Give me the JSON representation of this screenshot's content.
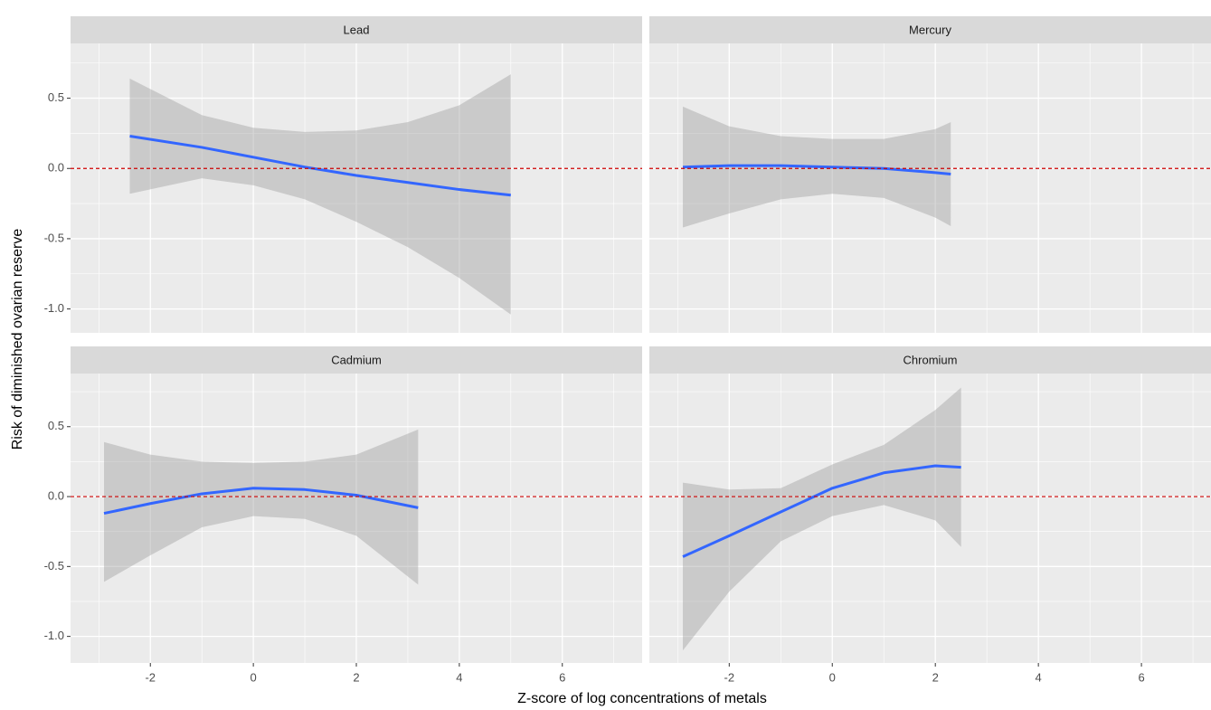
{
  "axis_labels": {
    "x": "Z-score of log concentrations of metals",
    "y": "Risk of diminished ovarian reserve"
  },
  "chart_data": [
    {
      "type": "line",
      "title": "Lead",
      "color": "#3366ff",
      "band_color": "#999999",
      "hline": 0,
      "hline_color": "#cc0000",
      "grid": true,
      "x": [
        -2.4,
        -1,
        0,
        1,
        2,
        3,
        4,
        5
      ],
      "values": [
        0.23,
        0.15,
        0.08,
        0.01,
        -0.05,
        -0.1,
        -0.15,
        -0.19
      ],
      "upper": [
        0.64,
        0.38,
        0.29,
        0.26,
        0.27,
        0.33,
        0.45,
        0.67
      ],
      "lower": [
        -0.18,
        -0.07,
        -0.12,
        -0.22,
        -0.38,
        -0.56,
        -0.78,
        -1.04
      ],
      "xlim": [
        -3.55,
        7.55
      ],
      "xticks": [
        -2,
        0,
        2,
        4,
        6
      ],
      "minor_xticks": [
        -3,
        -1,
        1,
        3,
        5,
        7
      ],
      "ylim": [
        -1.17,
        0.89
      ],
      "yticks": [
        0.5,
        {
          "value": 0,
          "label": "0.0"
        },
        -0.5,
        {
          "value": -1,
          "label": "-1.0"
        }
      ],
      "minor_yticks": [
        0.75,
        0.25,
        -0.25,
        -0.75
      ]
    },
    {
      "type": "line",
      "title": "Mercury",
      "color": "#3366ff",
      "band_color": "#999999",
      "hline": 0,
      "hline_color": "#cc0000",
      "grid": true,
      "x": [
        -2.9,
        -2,
        -1,
        0,
        1,
        2,
        2.3
      ],
      "values": [
        0.01,
        0.02,
        0.02,
        0.01,
        0.0,
        -0.03,
        -0.04
      ],
      "upper": [
        0.44,
        0.3,
        0.23,
        0.21,
        0.21,
        0.28,
        0.33
      ],
      "lower": [
        -0.42,
        -0.32,
        -0.22,
        -0.18,
        -0.21,
        -0.35,
        -0.41
      ],
      "xlim": [
        -3.55,
        7.35
      ],
      "xticks": [
        -2,
        0,
        2,
        4,
        6
      ],
      "minor_xticks": [
        -3,
        -1,
        1,
        3,
        5,
        7
      ],
      "ylim": [
        -1.17,
        0.89
      ],
      "yticks": [
        0.5,
        {
          "value": 0,
          "label": "0.0"
        },
        -0.5,
        {
          "value": -1,
          "label": "-1.0"
        }
      ],
      "minor_yticks": [
        0.75,
        0.25,
        -0.25,
        -0.75
      ]
    },
    {
      "type": "line",
      "title": "Cadmium",
      "color": "#3366ff",
      "band_color": "#999999",
      "hline": 0,
      "hline_color": "#cc0000",
      "grid": true,
      "x": [
        -2.9,
        -2,
        -1,
        0,
        1,
        2,
        3.2
      ],
      "values": [
        -0.12,
        -0.05,
        0.02,
        0.06,
        0.05,
        0.01,
        -0.08
      ],
      "upper": [
        0.39,
        0.3,
        0.25,
        0.24,
        0.25,
        0.3,
        0.48
      ],
      "lower": [
        -0.61,
        -0.42,
        -0.22,
        -0.14,
        -0.16,
        -0.28,
        -0.63
      ],
      "xlim": [
        -3.55,
        7.55
      ],
      "xticks": [
        -2,
        0,
        2,
        4,
        6
      ],
      "minor_xticks": [
        -3,
        -1,
        1,
        3,
        5,
        7
      ],
      "ylim": [
        -1.19,
        0.88
      ],
      "yticks": [
        0.5,
        {
          "value": 0,
          "label": "0.0"
        },
        -0.5,
        {
          "value": -1,
          "label": "-1.0"
        }
      ],
      "minor_yticks": [
        0.75,
        0.25,
        -0.25,
        -0.75
      ]
    },
    {
      "type": "line",
      "title": "Chromium",
      "color": "#3366ff",
      "band_color": "#999999",
      "hline": 0,
      "hline_color": "#cc0000",
      "grid": true,
      "x": [
        -2.9,
        -2,
        -1,
        0,
        1,
        2,
        2.5
      ],
      "values": [
        -0.43,
        -0.28,
        -0.11,
        0.06,
        0.17,
        0.22,
        0.21
      ],
      "upper": [
        0.1,
        0.05,
        0.06,
        0.23,
        0.37,
        0.62,
        0.78
      ],
      "lower": [
        -1.1,
        -0.68,
        -0.32,
        -0.14,
        -0.06,
        -0.17,
        -0.36
      ],
      "xlim": [
        -3.55,
        7.35
      ],
      "xticks": [
        -2,
        0,
        2,
        4,
        6
      ],
      "minor_xticks": [
        -3,
        -1,
        1,
        3,
        5,
        7
      ],
      "ylim": [
        -1.19,
        0.88
      ],
      "yticks": [
        0.5,
        {
          "value": 0,
          "label": "0.0"
        },
        -0.5,
        {
          "value": -1,
          "label": "-1.0"
        }
      ],
      "minor_yticks": [
        0.75,
        0.25,
        -0.25,
        -0.75
      ]
    }
  ]
}
